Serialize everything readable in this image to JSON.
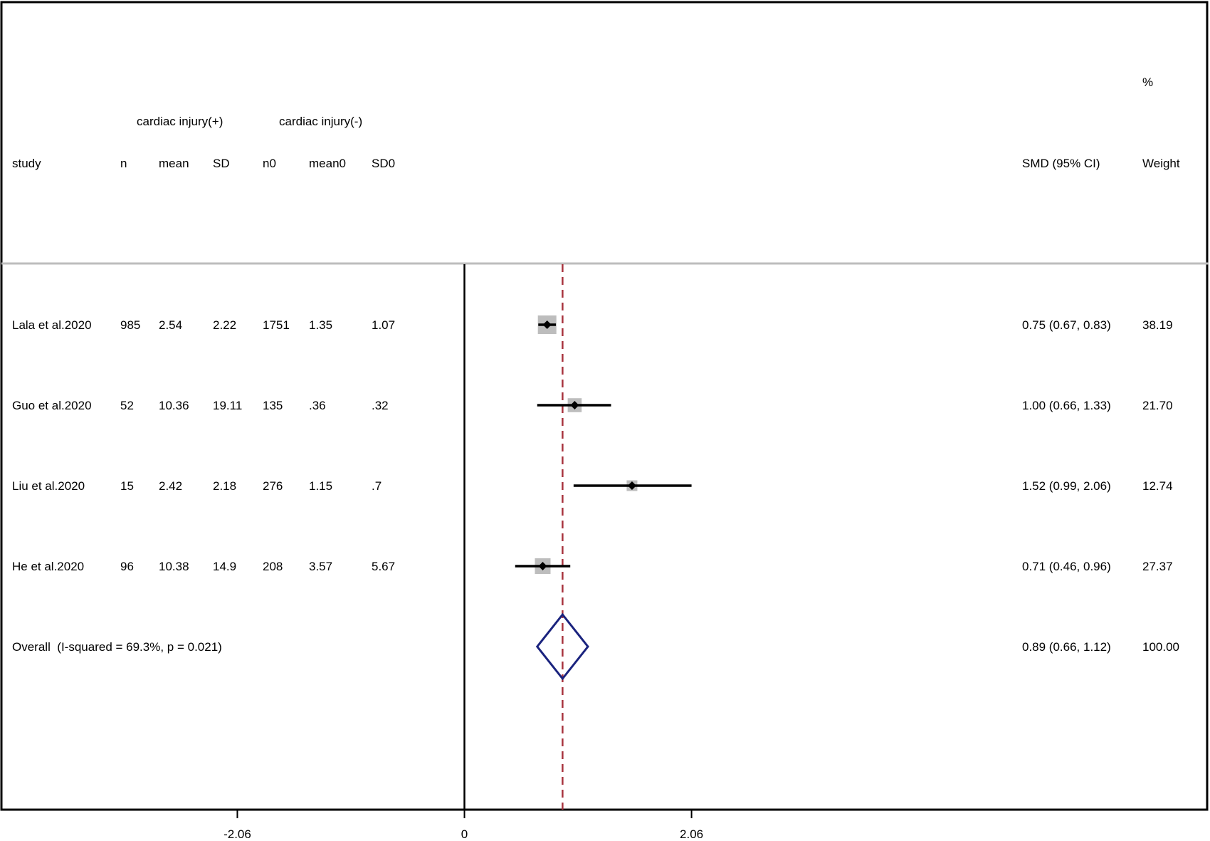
{
  "header": {
    "percent_label": "%",
    "group_pos": "cardiac injury(+)",
    "group_neg": "cardiac injury(-)",
    "col_study": "study",
    "col_n": "n",
    "col_mean": "mean",
    "col_sd": "SD",
    "col_n0": "n0",
    "col_mean0": "mean0",
    "col_sd0": "SD0",
    "col_smd": "SMD (95% CI)",
    "col_weight": "Weight"
  },
  "chart_data": {
    "type": "forest",
    "xlim": [
      -4.2,
      6.75
    ],
    "x_ticks": [
      {
        "value": -2.06,
        "label": "-2.06"
      },
      {
        "value": 0,
        "label": "0"
      },
      {
        "value": 2.06,
        "label": "2.06"
      }
    ],
    "null_line": 0,
    "pooled_line": 0.89,
    "studies": [
      {
        "study": "Lala et al.2020",
        "n": "985",
        "mean": "2.54",
        "sd": "2.22",
        "n0": "1751",
        "mean0": "1.35",
        "sd0": "1.07",
        "smd": 0.75,
        "lo": 0.67,
        "hi": 0.83,
        "ci_text": "0.75 (0.67, 0.83)",
        "weight": 38.19,
        "weight_text": "38.19"
      },
      {
        "study": "Guo et al.2020",
        "n": "52",
        "mean": "10.36",
        "sd": "19.11",
        "n0": "135",
        "mean0": ".36",
        "sd0": ".32",
        "smd": 1.0,
        "lo": 0.66,
        "hi": 1.33,
        "ci_text": "1.00 (0.66, 1.33)",
        "weight": 21.7,
        "weight_text": "21.70"
      },
      {
        "study": "Liu et al.2020",
        "n": "15",
        "mean": "2.42",
        "sd": "2.18",
        "n0": "276",
        "mean0": "1.15",
        "sd0": ".7",
        "smd": 1.52,
        "lo": 0.99,
        "hi": 2.06,
        "ci_text": "1.52 (0.99, 2.06)",
        "weight": 12.74,
        "weight_text": "12.74"
      },
      {
        "study": "He et al.2020",
        "n": "96",
        "mean": "10.38",
        "sd": "14.9",
        "n0": "208",
        "mean0": "3.57",
        "sd0": "5.67",
        "smd": 0.71,
        "lo": 0.46,
        "hi": 0.96,
        "ci_text": "0.71 (0.46, 0.96)",
        "weight": 27.37,
        "weight_text": "27.37"
      }
    ],
    "overall": {
      "label": "Overall  (I-squared = 69.3%, p = 0.021)",
      "smd": 0.89,
      "lo": 0.66,
      "hi": 1.12,
      "ci_text": "0.89 (0.66, 1.12)",
      "weight_text": "100.00"
    },
    "colors": {
      "pooled_line": "#a8343f",
      "diamond": "#1a237e",
      "box": "#bdbdbd",
      "line": "#000000"
    }
  }
}
